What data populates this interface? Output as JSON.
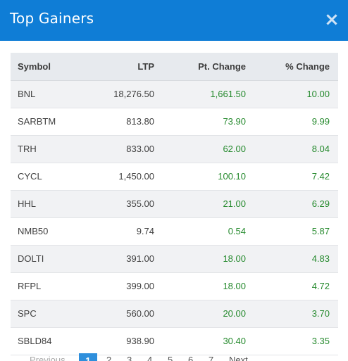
{
  "modal": {
    "title": "Top Gainers",
    "close_label": "×"
  },
  "table": {
    "headers": {
      "symbol": "Symbol",
      "ltp": "LTP",
      "pt_change": "Pt. Change",
      "pct_change": "% Change"
    },
    "rows": [
      {
        "symbol": "BNL",
        "ltp": "18,276.50",
        "pt_change": "1,661.50",
        "pct_change": "10.00"
      },
      {
        "symbol": "SARBTM",
        "ltp": "813.80",
        "pt_change": "73.90",
        "pct_change": "9.99"
      },
      {
        "symbol": "TRH",
        "ltp": "833.00",
        "pt_change": "62.00",
        "pct_change": "8.04"
      },
      {
        "symbol": "CYCL",
        "ltp": "1,450.00",
        "pt_change": "100.10",
        "pct_change": "7.42"
      },
      {
        "symbol": "HHL",
        "ltp": "355.00",
        "pt_change": "21.00",
        "pct_change": "6.29"
      },
      {
        "symbol": "NMB50",
        "ltp": "9.74",
        "pt_change": "0.54",
        "pct_change": "5.87"
      },
      {
        "symbol": "DOLTI",
        "ltp": "391.00",
        "pt_change": "18.00",
        "pct_change": "4.83"
      },
      {
        "symbol": "RFPL",
        "ltp": "399.00",
        "pt_change": "18.00",
        "pct_change": "4.72"
      },
      {
        "symbol": "SPC",
        "ltp": "560.00",
        "pt_change": "20.00",
        "pct_change": "3.70"
      },
      {
        "symbol": "SBLD84",
        "ltp": "938.90",
        "pt_change": "30.40",
        "pct_change": "3.35"
      }
    ]
  },
  "pagination": {
    "previous": "Previous",
    "pages": [
      "1",
      "2",
      "3",
      "4",
      "5",
      "6",
      "7"
    ],
    "active_page": "1",
    "next": "Next"
  },
  "colors": {
    "header_blue": "#0f7dd6",
    "positive_green": "#268a2e",
    "active_page_blue": "#2e8fdc"
  }
}
